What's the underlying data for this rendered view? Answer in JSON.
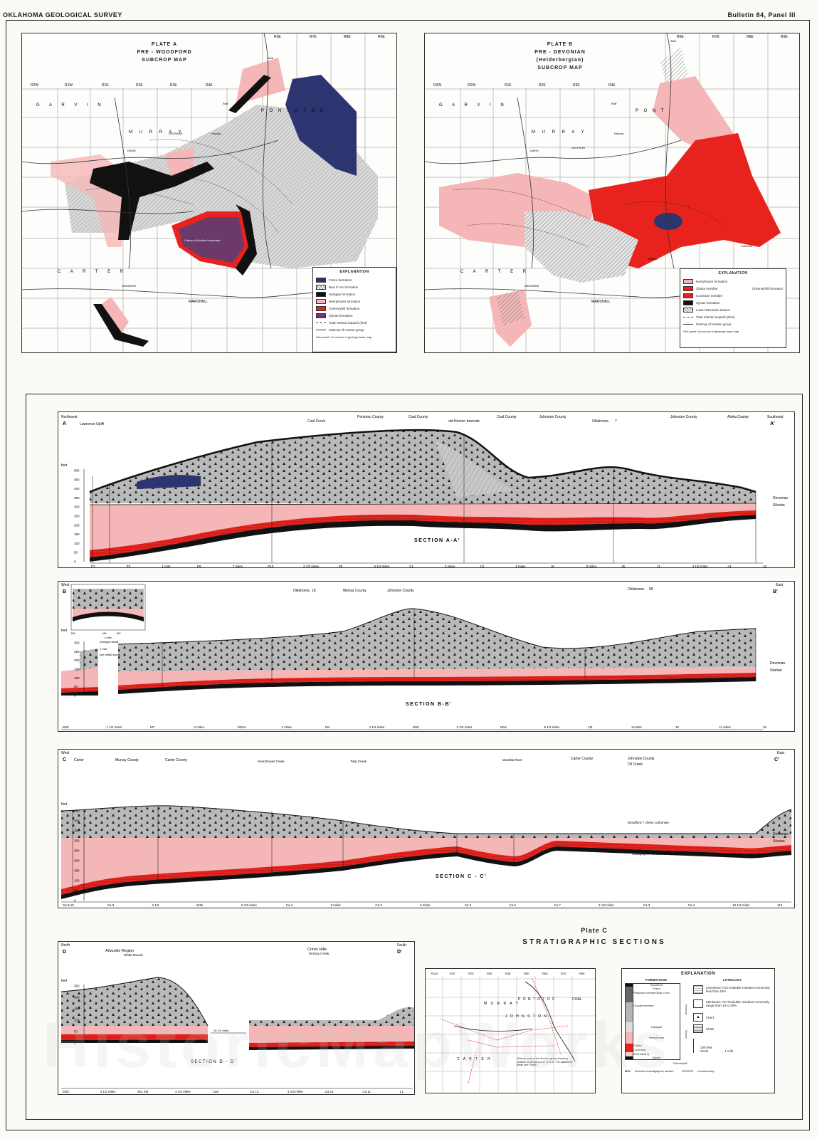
{
  "header": {
    "left": "OKLAHOMA GEOLOGICAL SURVEY",
    "right": "Bulletin 84, Panel III"
  },
  "colors": {
    "pink": "#f4b6b6",
    "red": "#e8231d",
    "navy": "#2d3570",
    "black": "#111111",
    "gray": "#b5b5b5",
    "purple": "#6b3a6b"
  },
  "plate_a": {
    "title": [
      "PLATE A",
      "PRE - WOODFORD",
      "SUBCROP MAP"
    ],
    "ranges": [
      "R2W",
      "R1W",
      "R1E",
      "R2E",
      "R3E",
      "R4E",
      "R6E",
      "R7E",
      "R8E",
      "R9E"
    ],
    "counties": [
      "G A R V I N",
      "M U R R A Y",
      "C A R T E R",
      "MARSHALL",
      "P O N T O T O C"
    ],
    "towns": [
      "ADA",
      "DAVIS",
      "SULPHUR",
      "ARDMORE",
      "Roff",
      "Hickory"
    ],
    "outcrop_label": "Outcrop of Woodford carbonates",
    "legend": {
      "title": "EXPLANATION",
      "items": [
        "Frisco formation",
        "Bois d' Arc formation",
        "Haragan formation",
        "Henryhouse formation",
        "Chimneyhill formation",
        "Sylvan formation",
        "Total Hunton isopach (feet)",
        "Outcrop of Hunton group"
      ],
      "note": "See panel I for source of geologic base map"
    }
  },
  "plate_b": {
    "title": [
      "PLATE B",
      "PRE - DEVONIAN",
      "(Helderbergian)",
      "SUBCROP MAP"
    ],
    "ranges": [
      "R2W",
      "R1W",
      "R1E",
      "R2E",
      "R3E",
      "R4E",
      "R6E",
      "R7E",
      "R8E",
      "R9E"
    ],
    "counties": [
      "G A R V I N",
      "M U R R A Y",
      "C A R T E R",
      "MARSHALL",
      "P O N T"
    ],
    "towns": [
      "ADA",
      "DAVIS",
      "SULPHUR",
      "ARDMORE",
      "Roff",
      "Hickory",
      "Coleman",
      "Wilburn"
    ],
    "legend": {
      "title": "EXPLANATION",
      "items": [
        "Henryhouse formation",
        "Clarita member",
        "Cochrane member",
        "Sylvan formation",
        "Lower Devonian absent",
        "Total Silurian isopach (feet)",
        "Outcrop of Hunton group"
      ],
      "chimneyhill": "Chimneyhill formation",
      "note": "See panel I for source of geologic base map"
    }
  },
  "section_a": {
    "letter": "A",
    "letter_end": "A'",
    "dir_left": "Northwest",
    "dir_right": "Southeast",
    "top_labels": [
      "Lawrence Uplift",
      "Coal Creek",
      "Pontotoc County",
      "Coal County",
      "old Hunton townsite",
      "Coal County",
      "Johnston County",
      "Oklahoma",
      "7",
      "Johnston County",
      "Atoka County"
    ],
    "title": "SECTION A-A'",
    "y_axis_label": "feet",
    "y_ticks": [
      "500",
      "450",
      "400",
      "350",
      "300",
      "250",
      "200",
      "150",
      "100",
      "50",
      "0"
    ],
    "right_labels": [
      "Devonian",
      "Silurian"
    ],
    "stations": [
      "P1",
      "P3",
      "1 mile",
      "P8",
      "7 miles",
      "P10",
      "2 1/2 miles",
      "P9",
      "5 1/2 miles",
      "C1",
      "3 miles",
      "C2",
      "4 miles",
      "J6",
      "3 miles",
      "J5",
      "J1",
      "4 1/2 miles",
      "A1",
      "A2"
    ]
  },
  "section_b": {
    "letter": "B",
    "letter_end": "B'",
    "dir_left": "West",
    "dir_right": "East",
    "top_labels": [
      "Oklahoma",
      "18",
      "Murray County",
      "Johnston County",
      "Oklahoma",
      "99"
    ],
    "title": "SECTION B-B'",
    "y_axis_label": "feet",
    "y_ticks": [
      "300",
      "250",
      "200",
      "150",
      "100",
      "50",
      "0"
    ],
    "right_labels": [
      "Devonian",
      "Silurian"
    ],
    "inset_labels": [
      "M5",
      "M6",
      "M7",
      "1 mile",
      "enlarged detail",
      "1 mile",
      "see detail above"
    ],
    "stations": [
      "M10",
      "1 1/2 miles",
      "M7",
      "2 miles",
      "M12A",
      "2 miles",
      "M1",
      "4 1/2 miles",
      "M10",
      "2 1/2 miles",
      "M14",
      "6 1/2 miles",
      "J11",
      "8 miles",
      "J9",
      "11 miles",
      "J8"
    ]
  },
  "section_c": {
    "letter": "C",
    "letter_end": "C'",
    "dir_left": "West",
    "dir_right": "East",
    "top_labels": [
      "Carter",
      "Murray County",
      "Carter County",
      "Henryhouse Creek",
      "Tulip Creek",
      "Washita River",
      "Carter County",
      "Johnston County",
      "Oil Creek"
    ],
    "title": "SECTION C - C'",
    "annotations": [
      "Woodford ? cherty carbonate",
      "Stratigraphic sections J13 to J18"
    ],
    "y_axis_label": "feet",
    "y_ticks": [
      "450",
      "400",
      "350",
      "300",
      "250",
      "200",
      "150",
      "100",
      "50",
      "0"
    ],
    "right_labels": [
      "Devonian",
      "Silurian"
    ],
    "stations": [
      "Ca 9,10",
      "Ca 8",
      "2 1/2",
      "M15",
      "5 1/2 miles",
      "Ca 1",
      "3 miles",
      "Ca 2",
      "3 miles",
      "Ca 6",
      "Ca 5",
      "Ca 7",
      "2 1/2 miles",
      "Ca 3",
      "Ca 4",
      "12 1/2 miles",
      "J12"
    ]
  },
  "section_d": {
    "letter": "D",
    "letter_end": "D'",
    "dir_left": "North",
    "dir_right": "South",
    "top_labels": [
      "Arbuckle Region",
      "White Mound",
      "Criner Hills",
      "Hickory Creek"
    ],
    "title": "SECTION D - D'",
    "gap_label": "18 1/2 miles",
    "y_axis_label": "feet",
    "y_ticks": [
      "250",
      "200",
      "150",
      "100",
      "50",
      "0"
    ],
    "stations": [
      "M10",
      "3 1/2 miles",
      "M2, M3",
      "3 1/2 miles",
      "Ca5",
      "Ca 13",
      "3 1/2 miles",
      "Ca 14",
      "Ca 11",
      "L1"
    ]
  },
  "plate_c": {
    "title_1": "Plate C",
    "title_2": "STRATIGRAPHIC SECTIONS",
    "index_map": {
      "ranges": [
        "R1W",
        "R1E",
        "R2E",
        "R3E",
        "R4E",
        "R5E",
        "R6E",
        "R7E",
        "R8E"
      ],
      "counties": [
        "M U R R A Y",
        "P O N T O T O C",
        "COAL",
        "J O H N S T O N",
        "C A R T E R"
      ],
      "caption": "Outcrop map of the Hunton group showing location of sections A-A' to D-D'. For additional detail see Panel I"
    },
    "explanation": {
      "title": "EXPLANATION",
      "formations_header": "FORMATIONS",
      "lithology_header": "LITHOLOGY",
      "formations": [
        "Woodford",
        "Frisco",
        "Fittstown member",
        "Bois d' Arc",
        "Cravatt member",
        "Haragan",
        "Henryhouse",
        "Clarita",
        "Cochrane",
        "Keel-Ideal Q.",
        "Sylvan"
      ],
      "group_labels": [
        "Devonian",
        "Silurian",
        "Chimneyhill"
      ],
      "lithology": [
        "Limestone; HCl insoluble residues commonly less than 10%",
        "Marlstone; HCl insoluble residues commonly range from 10 to 30%",
        "Chert",
        "Shale"
      ],
      "scale_label": "100 feet",
      "scale_word": "Scale",
      "scale_miles": "1 mile",
      "key_station": "M10",
      "key_desc": "Described stratigraphic section",
      "unconformity": "Unconformity"
    }
  },
  "watermark": "HistoricMapWorks"
}
